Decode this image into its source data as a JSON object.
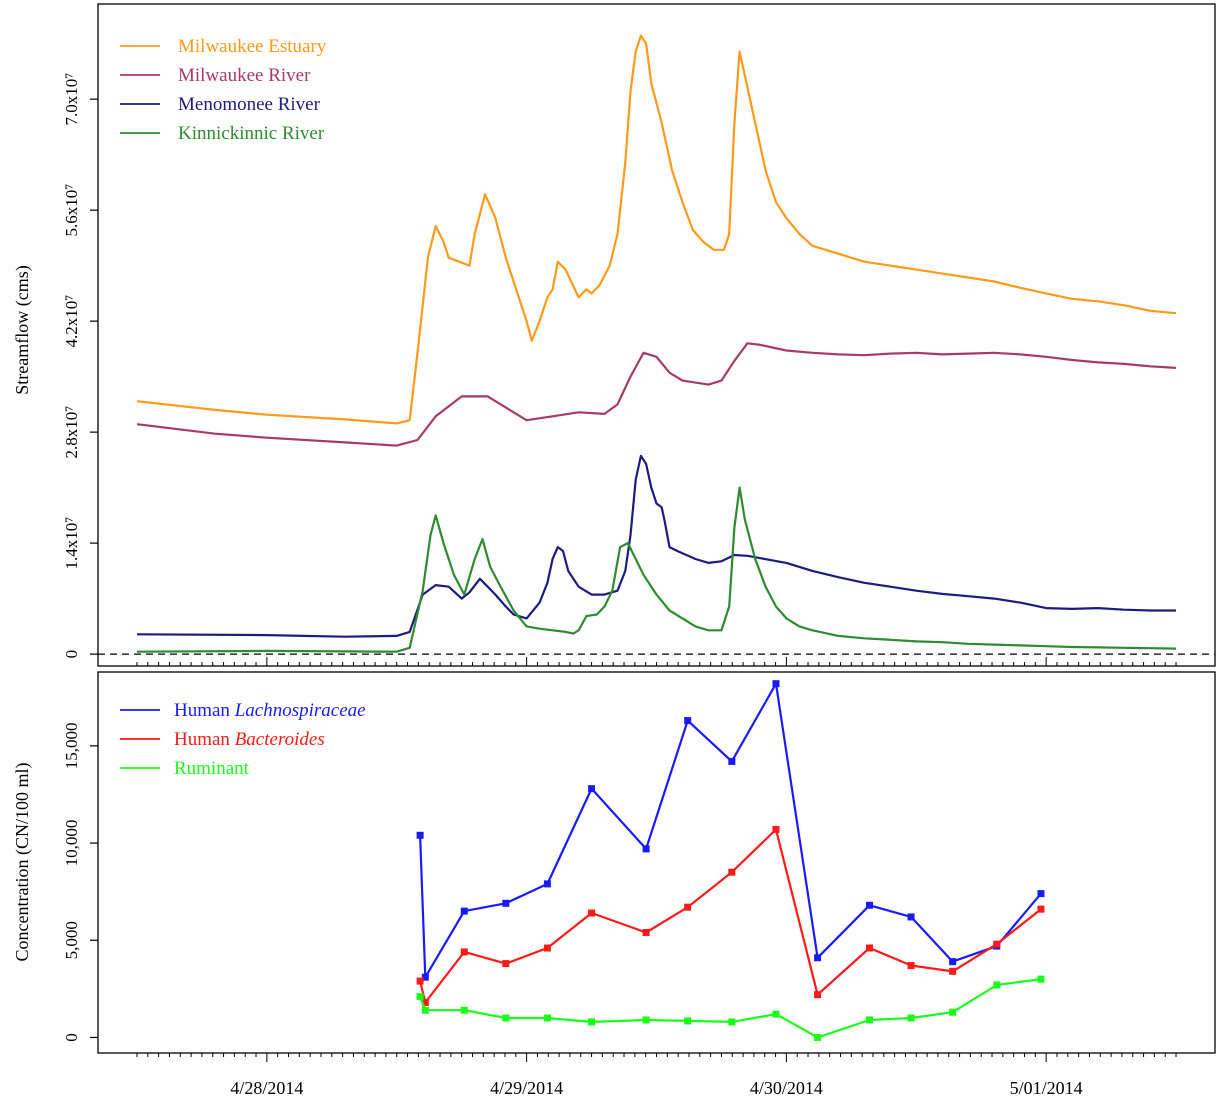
{
  "chart_data": [
    {
      "type": "line",
      "ylabel": "Streamflow (cms)",
      "ylim": [
        -1500000,
        82000000
      ],
      "y_ticks": [
        {
          "value": 0,
          "label": "0"
        },
        {
          "value": 14000000,
          "label": "1.4x10⁷"
        },
        {
          "value": 28000000,
          "label": "2.8x10⁷"
        },
        {
          "value": 42000000,
          "label": "4.2x10⁷"
        },
        {
          "value": 56000000,
          "label": "5.6x10⁷"
        },
        {
          "value": 70000000,
          "label": "7.0x10⁷"
        }
      ],
      "zero_reference_line": true,
      "legend_position": "top-left",
      "series": [
        {
          "name": "Milwaukee Estuary",
          "color": "#ff9a1a",
          "x": [
            -0.5,
            -0.2,
            0.0,
            0.3,
            0.5,
            0.55,
            0.58,
            0.62,
            0.65,
            0.68,
            0.7,
            0.74,
            0.78,
            0.8,
            0.84,
            0.88,
            0.92,
            0.95,
            0.98,
            1.0,
            1.02,
            1.05,
            1.08,
            1.1,
            1.12,
            1.15,
            1.2,
            1.23,
            1.25,
            1.28,
            1.32,
            1.35,
            1.38,
            1.4,
            1.42,
            1.44,
            1.46,
            1.48,
            1.52,
            1.56,
            1.6,
            1.64,
            1.68,
            1.72,
            1.76,
            1.78,
            1.8,
            1.82,
            1.84,
            1.88,
            1.92,
            1.96,
            2.0,
            2.05,
            2.1,
            2.2,
            2.3,
            2.4,
            2.5,
            2.6,
            2.7,
            2.8,
            2.9,
            3.0,
            3.1,
            3.2,
            3.3,
            3.4,
            3.5
          ],
          "y": [
            31900000,
            30800000,
            30200000,
            29600000,
            29100000,
            29500000,
            38000000,
            50000000,
            54000000,
            52000000,
            50000000,
            49500000,
            49000000,
            53000000,
            58000000,
            55000000,
            50000000,
            47000000,
            44000000,
            42000000,
            39500000,
            42000000,
            45000000,
            46000000,
            49500000,
            48500000,
            45000000,
            46000000,
            45500000,
            46500000,
            49000000,
            53000000,
            62000000,
            71000000,
            76000000,
            78000000,
            77000000,
            72000000,
            67000000,
            61000000,
            57000000,
            53500000,
            52000000,
            51000000,
            51000000,
            53000000,
            67000000,
            76000000,
            73000000,
            67000000,
            61000000,
            57000000,
            55000000,
            53000000,
            51500000,
            50500000,
            49500000,
            49000000,
            48500000,
            48000000,
            47500000,
            47000000,
            46200000,
            45500000,
            44800000,
            44500000,
            44000000,
            43300000,
            43000000
          ]
        },
        {
          "name": "Milwaukee River",
          "color": "#a83a68",
          "x": [
            -0.5,
            -0.2,
            0.0,
            0.3,
            0.5,
            0.58,
            0.65,
            0.75,
            0.85,
            0.95,
            1.0,
            1.1,
            1.2,
            1.3,
            1.35,
            1.4,
            1.45,
            1.5,
            1.55,
            1.6,
            1.7,
            1.75,
            1.8,
            1.85,
            1.9,
            2.0,
            2.1,
            2.2,
            2.3,
            2.4,
            2.5,
            2.6,
            2.7,
            2.8,
            2.9,
            3.0,
            3.1,
            3.2,
            3.3,
            3.4,
            3.5
          ],
          "y": [
            29000000,
            27800000,
            27300000,
            26700000,
            26300000,
            27000000,
            30000000,
            32500000,
            32500000,
            30500000,
            29500000,
            30000000,
            30500000,
            30300000,
            31500000,
            35000000,
            38000000,
            37500000,
            35500000,
            34500000,
            34000000,
            34500000,
            37000000,
            39200000,
            39000000,
            38300000,
            38000000,
            37800000,
            37700000,
            37900000,
            38000000,
            37800000,
            37900000,
            38000000,
            37800000,
            37500000,
            37100000,
            36800000,
            36600000,
            36300000,
            36100000
          ]
        },
        {
          "name": "Menomonee River",
          "color": "#1c1c80",
          "x": [
            -0.5,
            0.0,
            0.3,
            0.5,
            0.55,
            0.6,
            0.65,
            0.7,
            0.75,
            0.78,
            0.82,
            0.85,
            0.88,
            0.92,
            0.95,
            1.0,
            1.05,
            1.08,
            1.1,
            1.12,
            1.14,
            1.16,
            1.2,
            1.25,
            1.3,
            1.35,
            1.38,
            1.4,
            1.42,
            1.44,
            1.46,
            1.48,
            1.5,
            1.52,
            1.53,
            1.55,
            1.58,
            1.65,
            1.7,
            1.75,
            1.8,
            1.85,
            1.9,
            2.0,
            2.1,
            2.2,
            2.3,
            2.4,
            2.5,
            2.6,
            2.7,
            2.8,
            2.9,
            3.0,
            3.1,
            3.2,
            3.3,
            3.4,
            3.5
          ],
          "y": [
            2500000,
            2400000,
            2200000,
            2300000,
            2800000,
            7500000,
            8700000,
            8500000,
            7000000,
            7800000,
            9500000,
            8500000,
            7500000,
            6000000,
            5000000,
            4500000,
            6500000,
            9000000,
            12000000,
            13500000,
            13000000,
            10500000,
            8500000,
            7500000,
            7500000,
            8000000,
            10500000,
            15000000,
            22000000,
            25000000,
            24000000,
            21000000,
            19000000,
            18500000,
            17000000,
            13500000,
            13000000,
            12000000,
            11500000,
            11700000,
            12500000,
            12400000,
            12100000,
            11500000,
            10500000,
            9700000,
            9000000,
            8500000,
            8000000,
            7600000,
            7300000,
            7000000,
            6500000,
            5800000,
            5700000,
            5800000,
            5600000,
            5500000,
            5500000
          ]
        },
        {
          "name": "Kinnickinnic River",
          "color": "#2e8b30",
          "x": [
            -0.5,
            0.0,
            0.5,
            0.55,
            0.6,
            0.63,
            0.65,
            0.68,
            0.72,
            0.76,
            0.8,
            0.83,
            0.86,
            0.9,
            0.95,
            1.0,
            1.05,
            1.1,
            1.15,
            1.18,
            1.2,
            1.23,
            1.27,
            1.3,
            1.33,
            1.36,
            1.39,
            1.42,
            1.45,
            1.5,
            1.55,
            1.6,
            1.65,
            1.7,
            1.75,
            1.78,
            1.8,
            1.82,
            1.84,
            1.88,
            1.92,
            1.96,
            2.0,
            2.05,
            2.1,
            2.2,
            2.3,
            2.4,
            2.5,
            2.6,
            2.7,
            2.8,
            2.9,
            3.0,
            3.1,
            3.2,
            3.3,
            3.4,
            3.5
          ],
          "y": [
            300000,
            400000,
            300000,
            800000,
            8000000,
            15000000,
            17500000,
            14000000,
            10000000,
            7500000,
            12000000,
            14500000,
            11000000,
            8500000,
            5500000,
            3500000,
            3200000,
            3000000,
            2800000,
            2600000,
            3000000,
            4800000,
            5000000,
            6000000,
            8000000,
            13500000,
            14000000,
            12000000,
            10000000,
            7500000,
            5500000,
            4500000,
            3500000,
            3000000,
            3000000,
            6000000,
            16000000,
            21000000,
            17000000,
            12000000,
            8500000,
            6000000,
            4500000,
            3500000,
            3000000,
            2300000,
            2000000,
            1800000,
            1600000,
            1500000,
            1300000,
            1200000,
            1100000,
            1000000,
            900000,
            850000,
            800000,
            750000,
            700000
          ]
        }
      ]
    },
    {
      "type": "line",
      "ylabel": "Concentration (CN/100 ml)",
      "ylim": [
        -800,
        18800
      ],
      "xlim": [
        -0.65,
        3.65
      ],
      "y_ticks": [
        {
          "value": 0,
          "label": "0"
        },
        {
          "value": 5000,
          "label": "5,000"
        },
        {
          "value": 10000,
          "label": "10,000"
        },
        {
          "value": 15000,
          "label": "15,000"
        }
      ],
      "x_ticks": [
        {
          "value": 0,
          "label": "4/28/2014"
        },
        {
          "value": 1,
          "label": "4/29/2014"
        },
        {
          "value": 2,
          "label": "4/30/2014"
        },
        {
          "value": 3,
          "label": "5/01/2014"
        }
      ],
      "legend_position": "top-left",
      "series": [
        {
          "name": "Human Lachnospiraceae",
          "name_parts": [
            "Human ",
            "Lachnospiraceae"
          ],
          "color": "#1a1aff",
          "x": [
            0.59,
            0.61,
            0.76,
            0.92,
            1.08,
            1.25,
            1.46,
            1.62,
            1.79,
            1.96,
            2.12,
            2.32,
            2.48,
            2.64,
            2.81,
            2.98
          ],
          "y": [
            10400,
            3100,
            6500,
            6900,
            7900,
            12800,
            9700,
            16300,
            14200,
            18200,
            4100,
            6800,
            6200,
            3900,
            4700,
            7400
          ]
        },
        {
          "name": "Human Bacteroides",
          "name_parts": [
            "Human ",
            "Bacteroides"
          ],
          "color": "#ff1a1a",
          "x": [
            0.59,
            0.61,
            0.76,
            0.92,
            1.08,
            1.25,
            1.46,
            1.62,
            1.79,
            1.96,
            2.12,
            2.32,
            2.48,
            2.64,
            2.81,
            2.98
          ],
          "y": [
            2900,
            1800,
            4400,
            3800,
            4600,
            6400,
            5400,
            6700,
            8500,
            10700,
            2200,
            4600,
            3700,
            3400,
            4800,
            6600
          ]
        },
        {
          "name": "Ruminant",
          "name_parts": [
            "Ruminant",
            ""
          ],
          "color": "#1aff1a",
          "x": [
            0.59,
            0.61,
            0.76,
            0.92,
            1.08,
            1.25,
            1.46,
            1.62,
            1.79,
            1.96,
            2.12,
            2.32,
            2.48,
            2.64,
            2.81,
            2.98
          ],
          "y": [
            2100,
            1400,
            1400,
            1000,
            1000,
            800,
            900,
            850,
            800,
            1200,
            0,
            900,
            1000,
            1300,
            2700,
            3000
          ]
        }
      ]
    }
  ]
}
